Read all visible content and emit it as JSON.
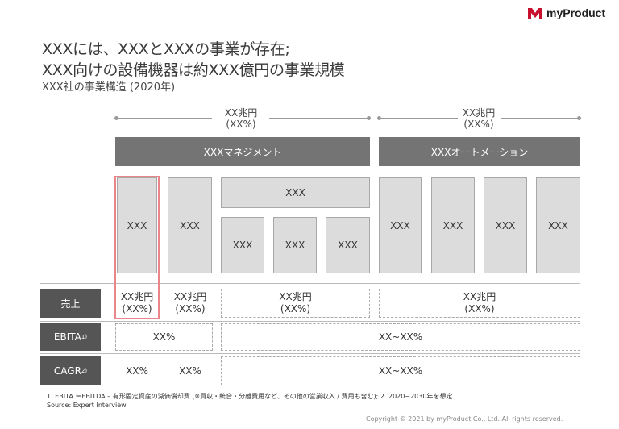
{
  "title": {
    "line1": "XXXには、XXXとXXXの事業が存在;",
    "line2": "XXX向けの設備機器は約XXX億円の事業規模",
    "subtitle": "XXX社の事業構造 (2020年)"
  },
  "logo": {
    "text": "myProduct",
    "color": "#c8102e"
  },
  "headers": {
    "left": {
      "line1": "XX兆円",
      "line2": "(XX%)"
    },
    "right": {
      "line1": "XX兆円",
      "line2": "(XX%)"
    }
  },
  "segments": {
    "left": "XXXマネジメント",
    "right": "XXXオートメーション"
  },
  "boxes": {
    "b1": "XXX",
    "b2": "XXX",
    "b3_top": "XXX",
    "b3a": "XXX",
    "b3b": "XXX",
    "b3c": "XXX",
    "b4": "XXX",
    "b5": "XXX",
    "b6": "XXX",
    "b7": "XXX"
  },
  "rows": {
    "sales": {
      "label": "売上",
      "c1": {
        "line1": "XX兆円",
        "line2": "(XX%)"
      },
      "c2": {
        "line1": "XX兆円",
        "line2": "(XX%)"
      },
      "c3": {
        "line1": "XX兆円",
        "line2": "(XX%)"
      },
      "c4": {
        "line1": "XX兆円",
        "line2": "(XX%)"
      }
    },
    "ebita": {
      "label": "EBITA",
      "sup": "1)",
      "c1": "XX%",
      "c2": "XX~XX%"
    },
    "cagr": {
      "label": "CAGR",
      "sup": "2)",
      "c1": "XX%",
      "c2": "XX%",
      "c3": "XX~XX%"
    }
  },
  "footnotes": {
    "line1": "1. EBITA ＝EBITDA – 有形固定資産の減価償却費 (※買収・統合・分離費用など、その他の営業収入 / 費用も含む); 2. 2020~2030年を想定",
    "line2": "Source: Expert Interview"
  },
  "copyright": "Copyright © 2021 by myProduct Co., Ltd.  All rights reserved."
}
